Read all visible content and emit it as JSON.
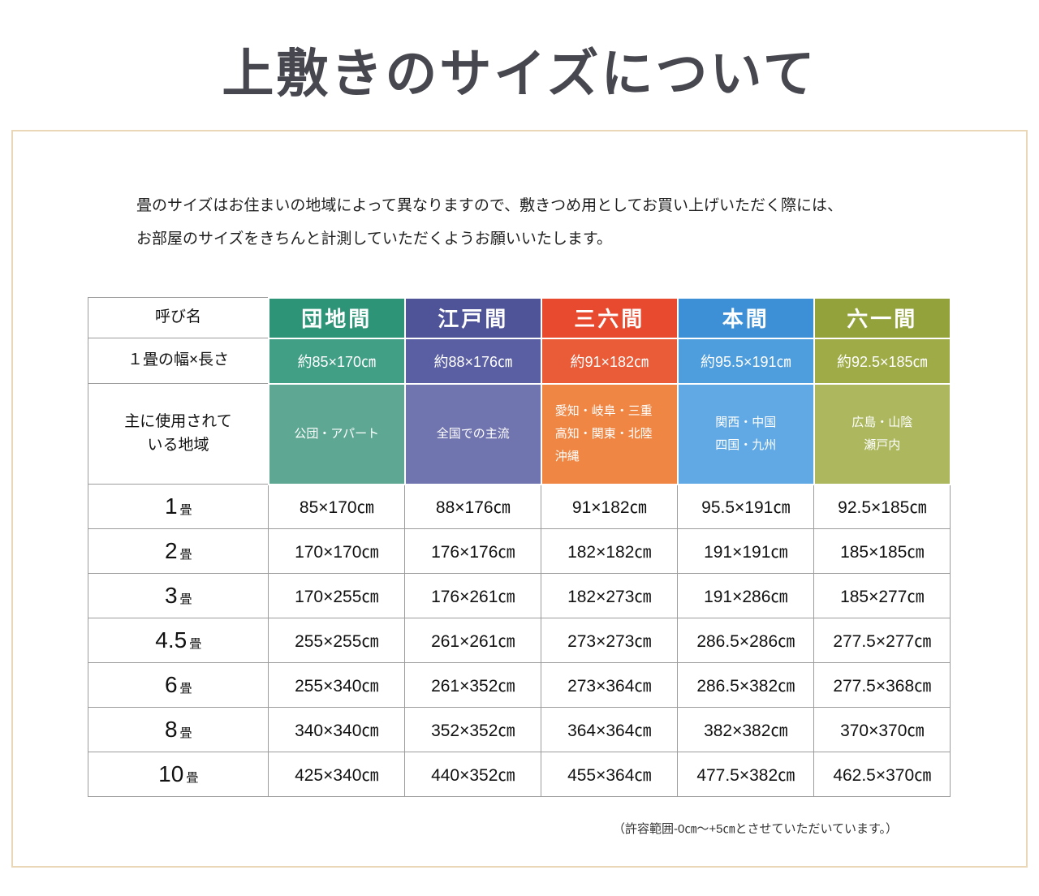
{
  "page_title": "上敷きのサイズについて",
  "intro": {
    "line1": "畳のサイズはお住まいの地域によって異なりますので、敷きつめ用としてお買い上げいただく際には、",
    "line2": "お部屋のサイズをきちんと計測していただくようお願いいたします。"
  },
  "footnote": "（許容範囲-0㎝〜+5㎝とさせていただいています。）",
  "table": {
    "label_header": "呼び名",
    "label_size": "１畳の幅×長さ",
    "label_region_line1": "主に使用されて",
    "label_region_line2": "いる地域",
    "columns": [
      {
        "name": "団地間",
        "size": "約85×170㎝",
        "region_lines": [
          "公団・アパート"
        ],
        "color_header": "#2e9477",
        "color_size": "#419f85",
        "color_region": "#5ea893"
      },
      {
        "name": "江戸間",
        "size": "約88×176㎝",
        "region_lines": [
          "全国での主流"
        ],
        "color_header": "#4f5499",
        "color_size": "#5a5fa3",
        "color_region": "#7175af"
      },
      {
        "name": "三六間",
        "size": "約91×182㎝",
        "region_lines": [
          "愛知・岐阜・三重",
          "高知・関東・北陸",
          "沖縄"
        ],
        "color_header": "#e74a2f",
        "color_size": "#ea5b37",
        "color_region": "#ef8643"
      },
      {
        "name": "本間",
        "size": "約95.5×191㎝",
        "region_lines": [
          "関西・中国",
          "四国・九州"
        ],
        "color_header": "#3e90d6",
        "color_size": "#4e9ddd",
        "color_region": "#61a9e4"
      },
      {
        "name": "六一間",
        "size": "約92.5×185㎝",
        "region_lines": [
          "広島・山陰",
          "瀬戸内"
        ],
        "color_header": "#93a23b",
        "color_size": "#9eab47",
        "color_region": "#acb75e"
      }
    ],
    "rows": [
      {
        "num": "1",
        "unit": "畳",
        "values": [
          "85×170㎝",
          "88×176㎝",
          "91×182㎝",
          "95.5×191㎝",
          "92.5×185㎝"
        ]
      },
      {
        "num": "2",
        "unit": "畳",
        "values": [
          "170×170㎝",
          "176×176㎝",
          "182×182㎝",
          "191×191㎝",
          "185×185㎝"
        ]
      },
      {
        "num": "3",
        "unit": "畳",
        "values": [
          "170×255㎝",
          "176×261㎝",
          "182×273㎝",
          "191×286㎝",
          "185×277㎝"
        ]
      },
      {
        "num": "4.5",
        "unit": "畳",
        "values": [
          "255×255㎝",
          "261×261㎝",
          "273×273㎝",
          "286.5×286㎝",
          "277.5×277㎝"
        ]
      },
      {
        "num": "6",
        "unit": "畳",
        "values": [
          "255×340㎝",
          "261×352㎝",
          "273×364㎝",
          "286.5×382㎝",
          "277.5×368㎝"
        ]
      },
      {
        "num": "8",
        "unit": "畳",
        "values": [
          "340×340㎝",
          "352×352㎝",
          "364×364㎝",
          "382×382㎝",
          "370×370㎝"
        ]
      },
      {
        "num": "10",
        "unit": "畳",
        "values": [
          "425×340㎝",
          "440×352㎝",
          "455×364㎝",
          "477.5×382㎝",
          "462.5×370㎝"
        ]
      }
    ]
  }
}
